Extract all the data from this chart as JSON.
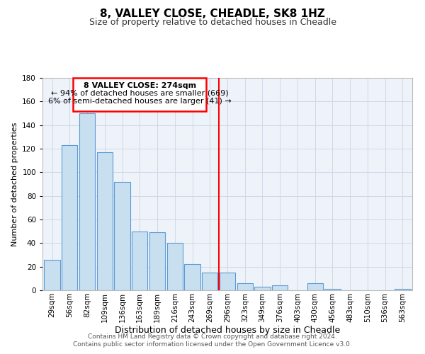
{
  "title": "8, VALLEY CLOSE, CHEADLE, SK8 1HZ",
  "subtitle": "Size of property relative to detached houses in Cheadle",
  "xlabel": "Distribution of detached houses by size in Cheadle",
  "ylabel": "Number of detached properties",
  "bar_labels": [
    "29sqm",
    "56sqm",
    "82sqm",
    "109sqm",
    "136sqm",
    "163sqm",
    "189sqm",
    "216sqm",
    "243sqm",
    "269sqm",
    "296sqm",
    "323sqm",
    "349sqm",
    "376sqm",
    "403sqm",
    "430sqm",
    "456sqm",
    "483sqm",
    "510sqm",
    "536sqm",
    "563sqm"
  ],
  "bar_values": [
    26,
    123,
    150,
    117,
    92,
    50,
    49,
    40,
    22,
    15,
    15,
    6,
    3,
    4,
    0,
    6,
    1,
    0,
    0,
    0,
    1
  ],
  "bar_color": "#c8dff0",
  "bar_edge_color": "#5b9bd5",
  "vline_color": "red",
  "vline_index": 9.5,
  "annotation_title": "8 VALLEY CLOSE: 274sqm",
  "annotation_line1": "← 94% of detached houses are smaller (669)",
  "annotation_line2": "6% of semi-detached houses are larger (41) →",
  "annotation_box_facecolor": "#ffffff",
  "annotation_box_edgecolor": "red",
  "ylim": [
    0,
    180
  ],
  "yticks": [
    0,
    20,
    40,
    60,
    80,
    100,
    120,
    140,
    160,
    180
  ],
  "grid_color": "#d0d8e8",
  "bar_color_right": "#b8d0e8",
  "footer_line1": "Contains HM Land Registry data © Crown copyright and database right 2024.",
  "footer_line2": "Contains public sector information licensed under the Open Government Licence v3.0.",
  "title_fontsize": 11,
  "subtitle_fontsize": 9,
  "xlabel_fontsize": 9,
  "ylabel_fontsize": 8,
  "tick_fontsize": 7.5,
  "annotation_title_fontsize": 8,
  "annotation_text_fontsize": 8,
  "footer_fontsize": 6.5
}
